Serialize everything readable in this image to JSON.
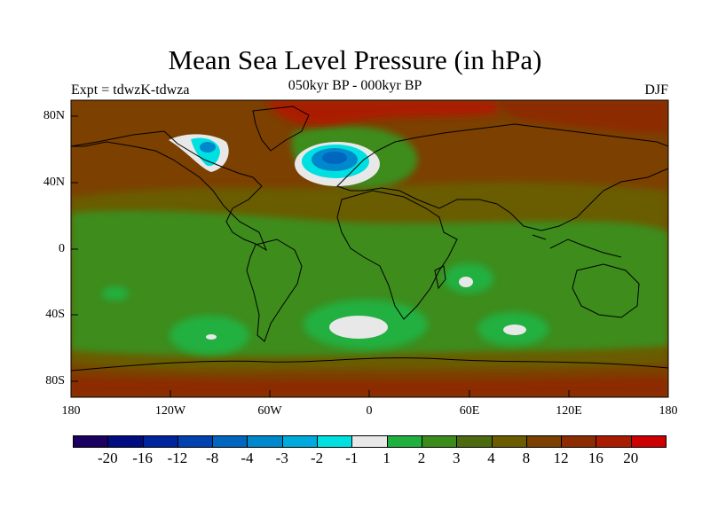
{
  "title": "Mean Sea Level Pressure (in hPa)",
  "subtitle": "050kyr BP - 000kyr BP",
  "experiment": "Expt = tdwzK-tdwza",
  "season": "DJF",
  "y_axis": {
    "labels": [
      "80N",
      "40N",
      "0",
      "40S",
      "80S"
    ]
  },
  "x_axis": {
    "labels": [
      "180",
      "120W",
      "60W",
      "0",
      "60E",
      "120E",
      "180"
    ]
  },
  "colorbar": {
    "colors": [
      "#1a0060",
      "#000d80",
      "#00239e",
      "#0042b0",
      "#0066c0",
      "#0088cc",
      "#00aadd",
      "#00e0e0",
      "#e8e8e8",
      "#20b040",
      "#3c8c1c",
      "#4e6a10",
      "#6b5c00",
      "#7c4000",
      "#8c2c00",
      "#aa1c00",
      "#cc0000"
    ],
    "labels": [
      "-20",
      "-16",
      "-12",
      "-8",
      "-4",
      "-3",
      "-2",
      "-1",
      "1",
      "2",
      "3",
      "4",
      "8",
      "12",
      "16",
      "20"
    ]
  },
  "map_colors": {
    "background": "#7c4000",
    "brown_dark": "#6b5c00",
    "olive": "#4e6a10",
    "green_dark": "#3c8c1c",
    "green": "#20b040",
    "white": "#e8e8e8",
    "red": "#aa1c00",
    "rust": "#8c2c00",
    "cyan": "#00e0e0",
    "blue_mid": "#0088cc",
    "blue_dark": "#0066c0"
  }
}
